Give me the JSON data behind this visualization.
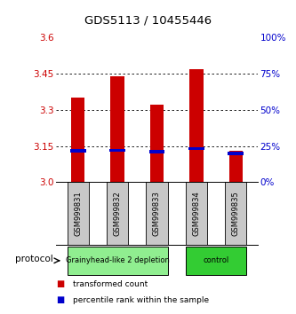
{
  "title": "GDS5113 / 10455446",
  "samples": [
    "GSM999831",
    "GSM999832",
    "GSM999833",
    "GSM999834",
    "GSM999835"
  ],
  "red_values": [
    3.35,
    3.44,
    3.32,
    3.47,
    3.13
  ],
  "blue_values": [
    3.13,
    3.132,
    3.127,
    3.14,
    3.12
  ],
  "ylim": [
    3.0,
    3.6
  ],
  "yticks_left": [
    3.0,
    3.15,
    3.3,
    3.45,
    3.6
  ],
  "yticks_right": [
    0,
    25,
    50,
    75,
    100
  ],
  "yticks_right_vals": [
    3.0,
    3.15,
    3.3,
    3.45,
    3.6
  ],
  "groups": [
    {
      "label": "Grainyhead-like 2 depletion",
      "samples": [
        0,
        1,
        2
      ],
      "color": "#90ee90"
    },
    {
      "label": "control",
      "samples": [
        3,
        4
      ],
      "color": "#33cc33"
    }
  ],
  "protocol_label": "protocol",
  "bar_width": 0.35,
  "red_color": "#cc0000",
  "blue_color": "#0000cc",
  "background_color": "#ffffff",
  "label_area_color": "#c8c8c8",
  "left_axis_color": "#cc0000",
  "right_axis_color": "#0000cc",
  "legend_red": "transformed count",
  "legend_blue": "percentile rank within the sample"
}
